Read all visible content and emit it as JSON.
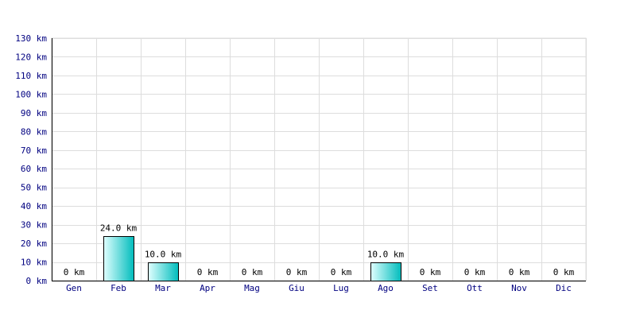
{
  "chart_data": {
    "type": "bar",
    "title": "",
    "xlabel": "",
    "ylabel": "",
    "categories": [
      "Gen",
      "Feb",
      "Mar",
      "Apr",
      "Mag",
      "Giu",
      "Lug",
      "Ago",
      "Set",
      "Ott",
      "Nov",
      "Dic"
    ],
    "values": [
      0,
      24,
      10,
      0,
      0,
      0,
      0,
      10,
      0,
      0,
      0,
      0
    ],
    "data_labels": [
      "0 km",
      "24.0 km",
      "10.0 km",
      "0 km",
      "0 km",
      "0 km",
      "0 km",
      "10.0 km",
      "0 km",
      "0 km",
      "0 km",
      "0 km"
    ],
    "ylim": [
      0,
      130
    ],
    "yticks": [
      0,
      10,
      20,
      30,
      40,
      50,
      60,
      70,
      80,
      90,
      100,
      110,
      120,
      130
    ],
    "ytick_labels": [
      "0 km",
      "10 km",
      "20 km",
      "30 km",
      "40 km",
      "50 km",
      "60 km",
      "70 km",
      "80 km",
      "90 km",
      "100 km",
      "110 km",
      "120 km",
      "130 km"
    ],
    "grid": true,
    "legend": "none",
    "colors": {
      "bar_light": "#e0ffff",
      "bar_dark": "#00bcbc",
      "bar_stroke": "#000000",
      "grid": "#dddddd",
      "axis": "#000000",
      "tick_text": "#000080"
    }
  }
}
